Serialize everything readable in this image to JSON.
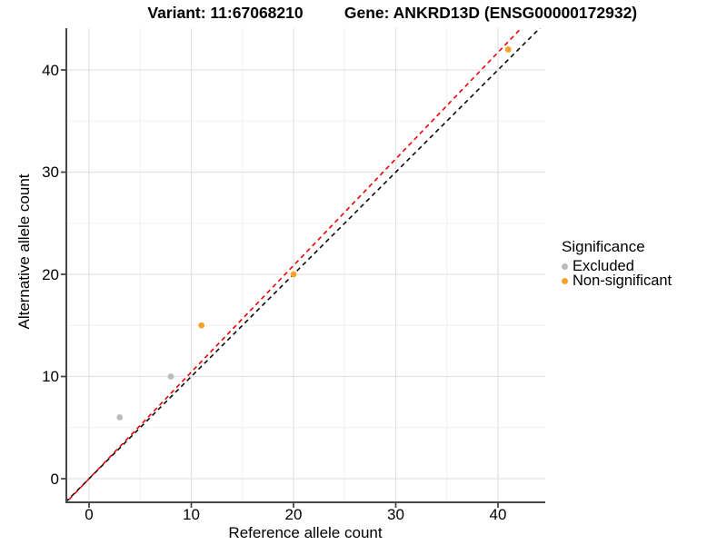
{
  "titles": {
    "left": "Variant: 11:67068210",
    "right": "Gene: ANKRD13D (ENSG00000172932)"
  },
  "chart_data": {
    "type": "scatter",
    "xlabel": "Reference allele count",
    "ylabel": "Alternative allele count",
    "xlim": [
      -2.2,
      44.6
    ],
    "ylim": [
      -2.3,
      44.1
    ],
    "xticks": [
      0,
      10,
      20,
      30,
      40
    ],
    "yticks": [
      0,
      10,
      20,
      30,
      40
    ],
    "xticks_minor": [
      5,
      15,
      25,
      35
    ],
    "yticks_minor": [
      5,
      15,
      25,
      35
    ],
    "grid": "major-and-minor",
    "series": [
      {
        "name": "Excluded",
        "color": "#bbbbbb",
        "points": [
          [
            3,
            6
          ],
          [
            8,
            10
          ]
        ]
      },
      {
        "name": "Non-significant",
        "color": "#f8a22b",
        "points": [
          [
            11,
            15
          ],
          [
            20,
            20
          ],
          [
            41,
            42
          ]
        ]
      }
    ],
    "lines": [
      {
        "name": "identity-line",
        "color": "#0a0a0a",
        "style": "dashed",
        "slope": 1.0,
        "intercept": 0
      },
      {
        "name": "fit-line",
        "color": "#ee0000",
        "style": "dashed",
        "slope": 1.043,
        "intercept": 0
      }
    ],
    "legend": {
      "title": "Significance",
      "position": "right",
      "items": [
        {
          "label": "Excluded",
          "color": "#bbbbbb"
        },
        {
          "label": "Non-significant",
          "color": "#f8a22b"
        }
      ]
    },
    "colors": {
      "axis": "#474747",
      "grid_major": "#e3e3e3",
      "grid_minor": "#f1f1f1",
      "background": "#ffffff"
    }
  }
}
